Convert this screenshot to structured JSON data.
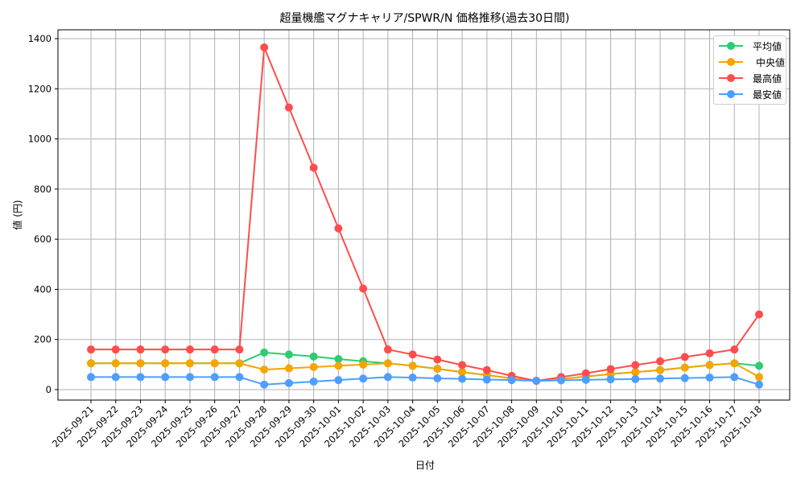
{
  "chart_data": {
    "type": "line",
    "title": "超量機艦マグナキャリア/SPWR/N 価格推移(過去30日間)",
    "xlabel": "日付",
    "ylabel": "値 (円)",
    "ylim": [
      -45,
      1440
    ],
    "yticks": [
      0,
      200,
      400,
      600,
      800,
      1000,
      1200,
      1400
    ],
    "grid": true,
    "legend_position": "upper right",
    "categories": [
      "2025-09-21",
      "2025-09-22",
      "2025-09-23",
      "2025-09-24",
      "2025-09-25",
      "2025-09-26",
      "2025-09-27",
      "2025-09-28",
      "2025-09-29",
      "2025-09-30",
      "2025-10-01",
      "2025-10-02",
      "2025-10-03",
      "2025-10-04",
      "2025-10-05",
      "2025-10-06",
      "2025-10-07",
      "2025-10-08",
      "2025-10-09",
      "2025-10-10",
      "2025-10-11",
      "2025-10-12",
      "2025-10-13",
      "2025-10-14",
      "2025-10-15",
      "2025-10-16",
      "2025-10-17",
      "2025-10-18"
    ],
    "series": [
      {
        "name": "平均値",
        "color": "#2ecc71",
        "values": [
          105,
          105,
          105,
          105,
          105,
          105,
          105,
          148,
          140,
          132,
          122,
          113,
          105,
          95,
          83,
          70,
          58,
          45,
          35,
          42,
          52,
          62,
          70,
          78,
          88,
          98,
          105,
          95
        ]
      },
      {
        "name": "中央値",
        "color": "#f5a500",
        "values": [
          105,
          105,
          105,
          105,
          105,
          105,
          105,
          80,
          85,
          90,
          95,
          100,
          105,
          95,
          83,
          70,
          58,
          45,
          35,
          42,
          52,
          62,
          70,
          78,
          88,
          98,
          105,
          50
        ]
      },
      {
        "name": "最高値",
        "color": "#ff4d4d",
        "values": [
          160,
          160,
          160,
          160,
          160,
          160,
          160,
          1365,
          1125,
          885,
          643,
          403,
          160,
          140,
          120,
          98,
          78,
          55,
          35,
          50,
          65,
          82,
          98,
          113,
          130,
          145,
          160,
          300
        ]
      },
      {
        "name": "最安値",
        "color": "#4d9fff",
        "values": [
          50,
          50,
          50,
          50,
          50,
          50,
          50,
          20,
          26,
          32,
          38,
          44,
          50,
          48,
          45,
          43,
          40,
          38,
          35,
          37,
          39,
          41,
          42,
          44,
          46,
          48,
          50,
          20
        ]
      }
    ]
  },
  "legend": {
    "items": [
      {
        "label": "平均値",
        "color": "#2ecc71"
      },
      {
        "label": "中央値",
        "color": "#f5a500"
      },
      {
        "label": "最高値",
        "color": "#ff4d4d"
      },
      {
        "label": "最安値",
        "color": "#4d9fff"
      }
    ]
  }
}
